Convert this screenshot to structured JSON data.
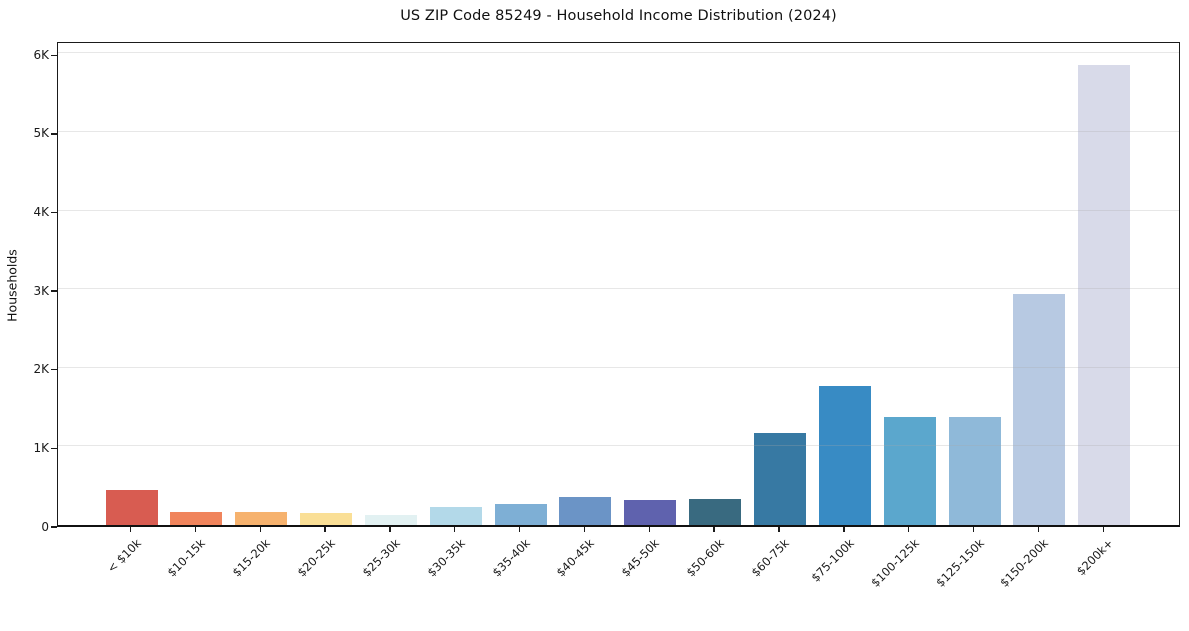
{
  "chart_data": {
    "type": "bar",
    "title": "US ZIP Code 85249 - Household Income Distribution (2024)",
    "xlabel": "",
    "ylabel": "Households",
    "categories": [
      "< $10k",
      "$10-15k",
      "$15-20k",
      "$20-25k",
      "$25-30k",
      "$30-35k",
      "$35-40k",
      "$40-45k",
      "$45-50k",
      "$50-60k",
      "$60-75k",
      "$75-100k",
      "$100-125k",
      "$125-150k",
      "$150-200k",
      "$200k+"
    ],
    "values": [
      450,
      170,
      160,
      150,
      130,
      230,
      270,
      350,
      315,
      335,
      1165,
      1765,
      1380,
      1370,
      2940,
      5855
    ],
    "bar_colors": [
      "#d85c51",
      "#f0845c",
      "#f6b26e",
      "#fadf96",
      "#e2f1f2",
      "#b3d9e9",
      "#7eafd5",
      "#6b94c6",
      "#5f62ae",
      "#396a80",
      "#3779a3",
      "#388bc4",
      "#5ba7cd",
      "#8fb9d9",
      "#b7c9e2",
      "#d8dae9"
    ],
    "ytick_labels": [
      "0",
      "1K",
      "2K",
      "3K",
      "4K",
      "5K",
      "6K"
    ],
    "ytick_values": [
      0,
      1000,
      2000,
      3000,
      4000,
      5000,
      6000
    ],
    "ylim": [
      0,
      6170
    ],
    "grid": "horizontal",
    "legend": "none",
    "background_color": "#ffffff",
    "text_color": "#1a1a1a"
  }
}
